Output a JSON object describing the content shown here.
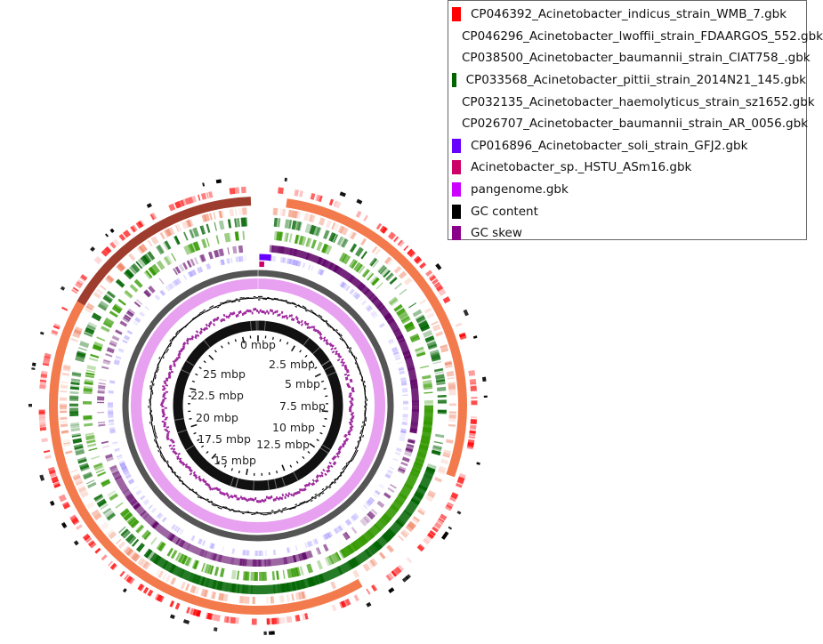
{
  "legend": [
    {
      "label": "CP046392_Acinetobacter_indicus_strain_WMB_7.gbk",
      "color": "#ff0000"
    },
    {
      "label": "CP046296_Acinetobacter_lwoffii_strain_FDAARGOS_552.gbk",
      "color": "#993322"
    },
    {
      "label": "CP038500_Acinetobacter_baumannii_strain_CIAT758_.gbk",
      "color": "#f26b38"
    },
    {
      "label": "CP033568_Acinetobacter_pittii_strain_2014N21_145.gbk",
      "color": "#006400"
    },
    {
      "label": "CP032135_Acinetobacter_haemolyticus_strain_sz1652.gbk",
      "color": "#339900"
    },
    {
      "label": "CP026707_Acinetobacter_baumannii_strain_AR_0056.gbk",
      "color": "#5c0066"
    },
    {
      "label": "CP016896_Acinetobacter_soli_strain_GFJ2.gbk",
      "color": "#6600ff"
    },
    {
      "label": "Acinetobacter_sp._HSTU_ASm16.gbk",
      "color": "#cc0066"
    },
    {
      "label": "pangenome.gbk",
      "color": "#cc00ff"
    },
    {
      "label": "GC content",
      "color": "#000000"
    },
    {
      "label": "GC skew",
      "color": "#8b008b"
    }
  ],
  "scale": {
    "unit": "mbp",
    "ticks": [
      "0 mbp",
      "2.5 mbp",
      "5 mbp",
      "7.5 mbp",
      "10 mbp",
      "12.5 mbp",
      "15 mbp",
      "17.5 mbp",
      "20 mbp",
      "22.5 mbp",
      "25 mbp"
    ]
  }
}
